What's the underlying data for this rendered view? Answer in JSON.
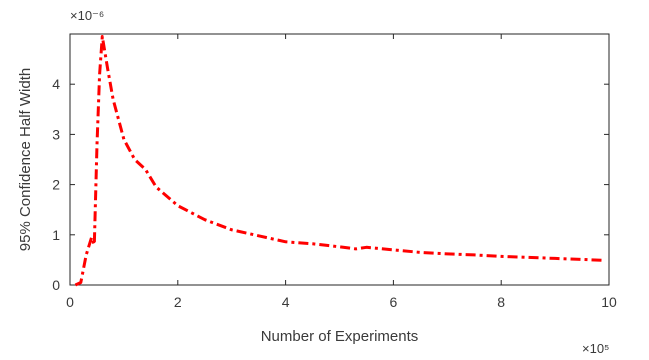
{
  "chart_data": {
    "type": "line",
    "xlabel": "Number of Experiments",
    "ylabel": "95% Confidence Half Width",
    "x_multiplier_label": "×10⁵",
    "y_multiplier_label": "×10⁻⁶",
    "xlim": [
      0,
      10
    ],
    "ylim": [
      0,
      5
    ],
    "x_ticks": [
      0,
      2,
      4,
      6,
      8,
      10
    ],
    "y_ticks": [
      0,
      1,
      2,
      3,
      4
    ],
    "x_tick_labels": [
      "0",
      "2",
      "4",
      "6",
      "8",
      "10"
    ],
    "y_tick_labels": [
      "0",
      "1",
      "2",
      "3",
      "4"
    ],
    "grid": false,
    "legend": "none",
    "series": [
      {
        "color": "#ff0000",
        "line_style": "dash-dot",
        "x": [
          0.1,
          0.2,
          0.3,
          0.4,
          0.45,
          0.5,
          0.55,
          0.6,
          0.7,
          0.8,
          1.0,
          1.2,
          1.3,
          1.4,
          1.6,
          2.0,
          2.5,
          3.0,
          3.5,
          4.0,
          4.5,
          5.0,
          5.3,
          5.5,
          6.0,
          6.5,
          7.0,
          7.5,
          8.0,
          8.5,
          9.0,
          9.5,
          9.9
        ],
        "y": [
          0.0,
          0.05,
          0.6,
          0.95,
          0.8,
          2.8,
          4.2,
          4.95,
          4.3,
          3.7,
          2.9,
          2.5,
          2.4,
          2.3,
          1.95,
          1.58,
          1.3,
          1.1,
          0.98,
          0.86,
          0.82,
          0.76,
          0.72,
          0.75,
          0.7,
          0.65,
          0.62,
          0.6,
          0.57,
          0.55,
          0.53,
          0.51,
          0.49
        ]
      }
    ]
  }
}
